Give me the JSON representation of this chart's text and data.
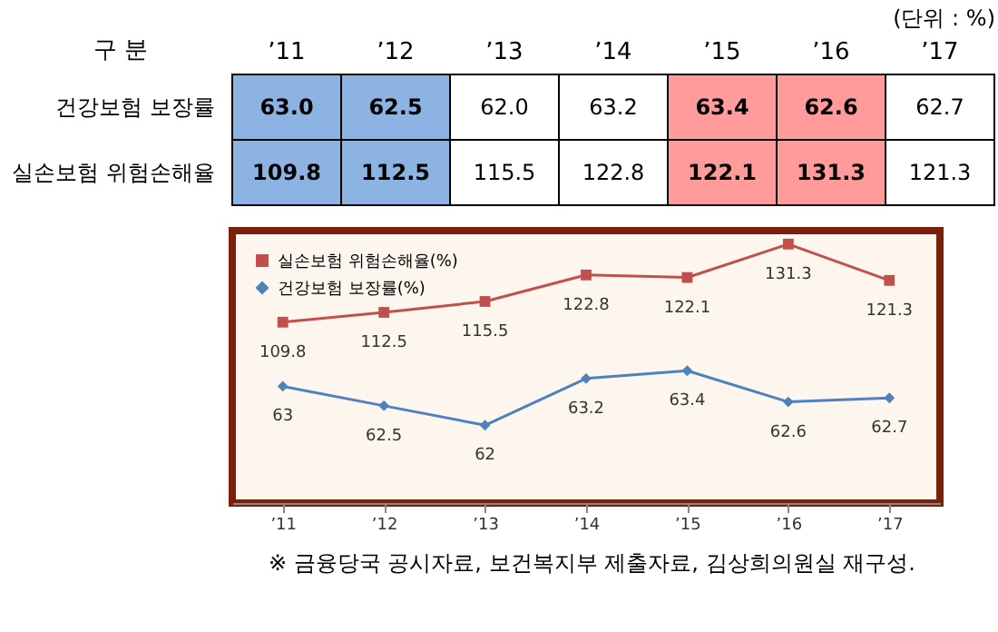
{
  "chart_data": [
    {
      "type": "heatmap",
      "subtitle": "(단위 : %)",
      "ylabel": "구 분",
      "categories": [
        "’11",
        "’12",
        "’13",
        "’14",
        "’15",
        "’16",
        "’17"
      ],
      "y_categories": [
        "건강보험 보장률",
        "실손보험 위험손해율"
      ],
      "cells": [
        [
          63.0,
          62.5,
          62.0,
          63.2,
          63.4,
          62.6,
          62.7
        ],
        [
          109.8,
          112.5,
          115.5,
          122.8,
          122.1,
          131.3,
          121.3
        ]
      ],
      "cell_labels": [
        [
          "63.0",
          "62.5",
          "62.0",
          "63.2",
          "63.4",
          "62.6",
          "62.7"
        ],
        [
          "109.8",
          "112.5",
          "115.5",
          "122.8",
          "122.1",
          "131.3",
          "121.3"
        ]
      ],
      "bands": [
        {
          "axis": "x",
          "from": "’11",
          "to": "’12",
          "color": "#8db3e2"
        },
        {
          "axis": "x",
          "from": "’15",
          "to": "’16",
          "color": "#ff9b9b"
        }
      ]
    },
    {
      "type": "line",
      "categories": [
        "’11",
        "’12",
        "’13",
        "’14",
        "’15",
        "’16",
        "’17"
      ],
      "series": [
        {
          "name": "실손보험 위험손해율(%)",
          "color": "#c0504d",
          "marker": "square",
          "values": [
            109.8,
            112.5,
            115.5,
            122.8,
            122.1,
            131.3,
            121.3
          ]
        },
        {
          "name": "건강보험 보장률(%)",
          "color": "#4f81bd",
          "marker": "diamond",
          "axis": "y2",
          "values": [
            63,
            62.5,
            62,
            63.2,
            63.4,
            62.6,
            62.7
          ]
        }
      ],
      "ylim": [
        60,
        135
      ],
      "y2lim": [
        60,
        67
      ],
      "data_labels": true,
      "legend": "top left",
      "tick_labels": "x",
      "annotations": [
        "※ 금융당국 공시자료, 보건복지부 제출자료, 김상희의원실 재구성."
      ]
    }
  ]
}
